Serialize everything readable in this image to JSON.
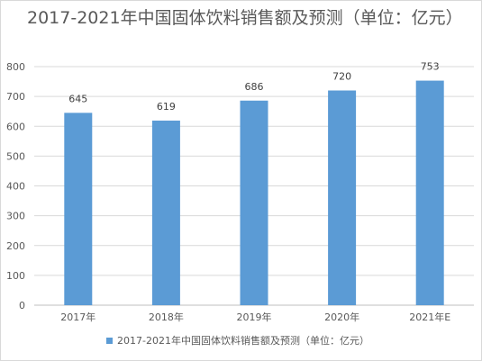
{
  "chart_data": {
    "type": "bar",
    "title": "2017-2021年中国固体饮料销售额及预测（单位：亿元）",
    "categories": [
      "2017年",
      "2018年",
      "2019年",
      "2020年",
      "2021年E"
    ],
    "series": [
      {
        "name": "2017-2021年中国固体饮料销售额及预测（单位：亿元）",
        "values": [
          645,
          619,
          686,
          720,
          753
        ]
      }
    ],
    "ylim": [
      0,
      800
    ],
    "yticks": [
      0,
      100,
      200,
      300,
      400,
      500,
      600,
      700,
      800
    ],
    "grid": true,
    "legend_position": "bottom",
    "colors": {
      "bar": "#5b9bd5",
      "grid": "#d9d9d9",
      "axis": "#bfbfbf"
    }
  }
}
